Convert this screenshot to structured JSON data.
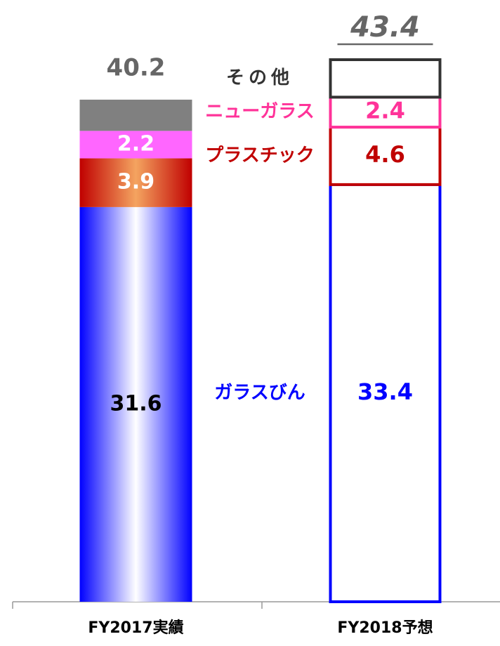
{
  "chart_data": {
    "type": "stacked_bar",
    "categories": [
      "FY2017実績",
      "FY2018予想"
    ],
    "totals": [
      40.2,
      43.4
    ],
    "series": [
      {
        "name": "ガラスびん",
        "color": "#0000ff",
        "highlight": "#ffffff",
        "label_colors": [
          "#000000",
          "#0000ff"
        ],
        "values": [
          31.6,
          33.4
        ]
      },
      {
        "name": "プラスチック",
        "color": "#c00000",
        "highlight": "#f4a460",
        "label_colors": [
          "#ffffff",
          "#c00000"
        ],
        "values": [
          3.9,
          4.6
        ]
      },
      {
        "name": "ニューガラス",
        "color": "#ff3399",
        "highlight": "#ff66ff",
        "label_colors": [
          "#ffffff",
          "#ff3399"
        ],
        "values": [
          2.2,
          2.4
        ]
      },
      {
        "name": "その他",
        "color": "#333333",
        "highlight": "#808080",
        "values": [
          2.5,
          3.0
        ],
        "value_labels": [
          null,
          null
        ]
      }
    ]
  }
}
